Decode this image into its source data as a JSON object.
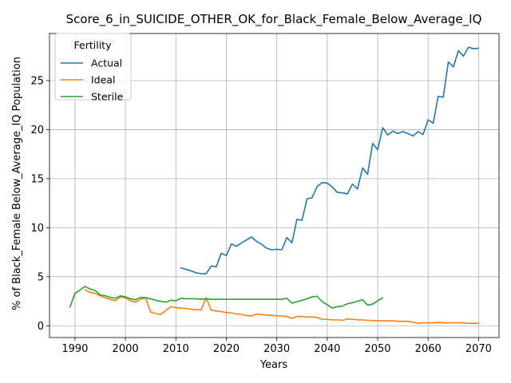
{
  "chart_data": {
    "type": "line",
    "title": "Score_6_in_SUICIDE_OTHER_OK_for_Black_Female_Below_Average_IQ",
    "xlabel": "Years",
    "ylabel": "% of Black_Female Below_Average_IQ Population",
    "xlim": [
      1984.95,
      2074.05
    ],
    "ylim": [
      -1.2,
      29.8
    ],
    "xticks": [
      1990,
      2000,
      2010,
      2020,
      2030,
      2040,
      2050,
      2060,
      2070
    ],
    "yticks": [
      0,
      5,
      10,
      15,
      20,
      25
    ],
    "grid": true,
    "legend": {
      "title": "Fertility",
      "placement": "upper-left"
    },
    "series": [
      {
        "name": "Actual",
        "color": "#1f77b4",
        "x": [
          2011,
          2012,
          2013,
          2014,
          2015,
          2016,
          2017,
          2018,
          2019,
          2020,
          2021,
          2022,
          2023,
          2024,
          2025,
          2026,
          2027,
          2028,
          2029,
          2030,
          2031,
          2032,
          2033,
          2034,
          2035,
          2036,
          2037,
          2038,
          2039,
          2040,
          2041,
          2042,
          2043,
          2044,
          2045,
          2046,
          2047,
          2048,
          2049,
          2050,
          2051,
          2052,
          2053,
          2054,
          2055,
          2056,
          2057,
          2058,
          2059,
          2060,
          2061,
          2062,
          2063,
          2064,
          2065,
          2066,
          2067,
          2068,
          2069,
          2070
        ],
        "y": [
          5.9,
          5.75,
          5.6,
          5.4,
          5.3,
          5.3,
          6.1,
          6.0,
          7.4,
          7.15,
          8.35,
          8.1,
          8.45,
          8.75,
          9.05,
          8.6,
          8.3,
          7.9,
          7.75,
          7.8,
          7.75,
          9.0,
          8.45,
          10.85,
          10.75,
          12.95,
          13.05,
          14.2,
          14.6,
          14.55,
          14.15,
          13.6,
          13.55,
          13.45,
          14.45,
          13.95,
          16.1,
          15.45,
          18.6,
          17.95,
          20.2,
          19.45,
          19.85,
          19.6,
          19.8,
          19.6,
          19.35,
          19.8,
          19.5,
          21.0,
          20.65,
          23.4,
          23.3,
          26.9,
          26.4,
          28.05,
          27.5,
          28.4,
          28.25,
          28.3
        ]
      },
      {
        "name": "Ideal",
        "color": "#ff7f0e",
        "x": [
          1992,
          1993,
          1994,
          1995,
          1996,
          1997,
          1998,
          1999,
          2000,
          2001,
          2002,
          2003,
          2004,
          2005,
          2006,
          2007,
          2008,
          2009,
          2010,
          2011,
          2012,
          2013,
          2014,
          2015,
          2016,
          2017,
          2018,
          2019,
          2020,
          2021,
          2022,
          2023,
          2024,
          2025,
          2026,
          2027,
          2028,
          2029,
          2030,
          2031,
          2032,
          2033,
          2034,
          2035,
          2036,
          2037,
          2038,
          2039,
          2040,
          2041,
          2042,
          2043,
          2044,
          2045,
          2046,
          2047,
          2048,
          2049,
          2050,
          2051,
          2052,
          2053,
          2054,
          2055,
          2056,
          2057,
          2058,
          2059,
          2060,
          2061,
          2062,
          2063,
          2064,
          2065,
          2066,
          2067,
          2068,
          2069,
          2070
        ],
        "y": [
          3.65,
          3.4,
          3.3,
          3.05,
          2.85,
          2.7,
          2.55,
          2.95,
          2.85,
          2.55,
          2.4,
          2.7,
          2.85,
          1.4,
          1.25,
          1.15,
          1.55,
          1.95,
          1.85,
          1.8,
          1.75,
          1.7,
          1.65,
          1.6,
          2.85,
          1.6,
          1.5,
          1.45,
          1.35,
          1.3,
          1.2,
          1.15,
          1.05,
          1.0,
          1.2,
          1.15,
          1.1,
          1.05,
          1.0,
          1.0,
          0.95,
          0.75,
          0.95,
          0.95,
          0.9,
          0.9,
          0.85,
          0.65,
          0.65,
          0.6,
          0.6,
          0.55,
          0.7,
          0.65,
          0.6,
          0.6,
          0.55,
          0.55,
          0.5,
          0.5,
          0.5,
          0.5,
          0.45,
          0.45,
          0.45,
          0.35,
          0.25,
          0.3,
          0.3,
          0.3,
          0.35,
          0.3,
          0.3,
          0.3,
          0.3,
          0.3,
          0.25,
          0.25,
          0.25
        ]
      },
      {
        "name": "Sterile",
        "color": "#2ca02c",
        "x": [
          1989,
          1990,
          1991,
          1992,
          1993,
          1994,
          1995,
          1996,
          1997,
          1998,
          1999,
          2000,
          2001,
          2002,
          2003,
          2004,
          2005,
          2006,
          2007,
          2008,
          2009,
          2010,
          2011,
          2012,
          2013,
          2014,
          2015,
          2016,
          2017,
          2018,
          2019,
          2020,
          2021,
          2022,
          2023,
          2024,
          2025,
          2026,
          2027,
          2028,
          2029,
          2030,
          2031,
          2032,
          2033,
          2034,
          2035,
          2036,
          2037,
          2038,
          2039,
          2040,
          2041,
          2042,
          2043,
          2044,
          2045,
          2046,
          2047,
          2048,
          2049,
          2050,
          2051
        ],
        "y": [
          1.9,
          3.3,
          3.65,
          4.0,
          3.75,
          3.6,
          3.15,
          3.05,
          2.9,
          2.8,
          3.05,
          2.95,
          2.75,
          2.65,
          2.9,
          2.85,
          2.75,
          2.6,
          2.5,
          2.4,
          2.6,
          2.55,
          2.8,
          2.75,
          2.75,
          2.75,
          2.7,
          2.75,
          2.7,
          2.7,
          2.7,
          2.7,
          2.7,
          2.7,
          2.7,
          2.7,
          2.7,
          2.7,
          2.7,
          2.7,
          2.7,
          2.7,
          2.7,
          2.8,
          2.3,
          2.45,
          2.6,
          2.75,
          2.95,
          3.0,
          2.45,
          2.15,
          1.8,
          1.95,
          2.0,
          2.25,
          2.35,
          2.5,
          2.65,
          2.1,
          2.2,
          2.55,
          2.85
        ]
      }
    ]
  }
}
